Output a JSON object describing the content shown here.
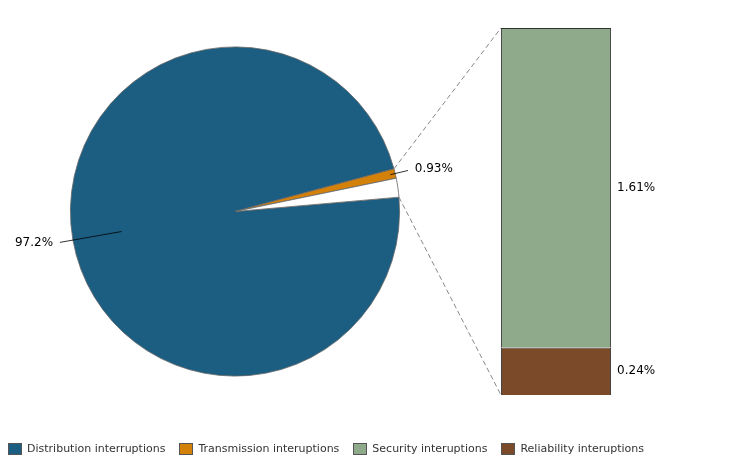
{
  "chart_data": [
    {
      "type": "pie",
      "categories": [
        "Distribution interruptions",
        "Transmission interuptions",
        null
      ],
      "values": [
        97.2,
        0.93,
        1.85
      ],
      "colors": [
        "#1b5e82",
        "#d4810a",
        "#ffffff"
      ],
      "value_labels": [
        "97.2%",
        "0.93%",
        null
      ],
      "data_labels": true,
      "legend": "lower left"
    },
    {
      "type": "bar",
      "categories": [
        null
      ],
      "stacked": true,
      "series": [
        {
          "name": "Reliability interuptions",
          "color": "#7b4a28",
          "values": [
            0.24
          ],
          "value_labels": [
            "0.24%"
          ]
        },
        {
          "name": "Security interuptions",
          "color": "#8faa8a",
          "values": [
            1.61
          ],
          "value_labels": [
            "1.61%"
          ]
        }
      ],
      "ylim": [
        0,
        1.85
      ],
      "tick_labels": false,
      "data_labels": true,
      "grid": false,
      "legend": "lower left"
    }
  ]
}
